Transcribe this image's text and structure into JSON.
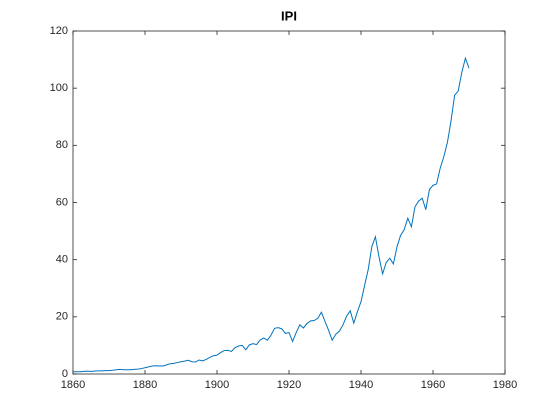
{
  "chart_data": {
    "type": "line",
    "title": "IPI",
    "x": [
      1860,
      1861,
      1862,
      1863,
      1864,
      1865,
      1866,
      1867,
      1868,
      1869,
      1870,
      1871,
      1872,
      1873,
      1874,
      1875,
      1876,
      1877,
      1878,
      1879,
      1880,
      1881,
      1882,
      1883,
      1884,
      1885,
      1886,
      1887,
      1888,
      1889,
      1890,
      1891,
      1892,
      1893,
      1894,
      1895,
      1896,
      1897,
      1898,
      1899,
      1900,
      1901,
      1902,
      1903,
      1904,
      1905,
      1906,
      1907,
      1908,
      1909,
      1910,
      1911,
      1912,
      1913,
      1914,
      1915,
      1916,
      1917,
      1918,
      1919,
      1920,
      1921,
      1922,
      1923,
      1924,
      1925,
      1926,
      1927,
      1928,
      1929,
      1930,
      1931,
      1932,
      1933,
      1934,
      1935,
      1936,
      1937,
      1938,
      1939,
      1940,
      1941,
      1942,
      1943,
      1944,
      1945,
      1946,
      1947,
      1948,
      1949,
      1950,
      1951,
      1952,
      1953,
      1954,
      1955,
      1956,
      1957,
      1958,
      1959,
      1960,
      1961,
      1962,
      1963,
      1964,
      1965,
      1966,
      1967,
      1968,
      1969,
      1970
    ],
    "series": [
      {
        "color": "#0072bd",
        "values": [
          0.8,
          0.8,
          0.8,
          0.9,
          1.0,
          0.9,
          1.0,
          1.1,
          1.1,
          1.2,
          1.2,
          1.3,
          1.5,
          1.6,
          1.5,
          1.5,
          1.5,
          1.6,
          1.7,
          1.9,
          2.2,
          2.5,
          2.8,
          2.9,
          2.8,
          2.8,
          3.2,
          3.6,
          3.7,
          4.0,
          4.3,
          4.5,
          4.8,
          4.3,
          4.2,
          4.9,
          4.6,
          5.1,
          5.8,
          6.4,
          6.6,
          7.5,
          8.2,
          8.3,
          7.9,
          9.2,
          9.8,
          10.0,
          8.5,
          10.2,
          10.6,
          10.3,
          11.9,
          12.6,
          11.8,
          13.6,
          16.0,
          16.2,
          15.8,
          14.2,
          14.5,
          11.4,
          14.5,
          17.2,
          16.1,
          17.7,
          18.6,
          18.7,
          19.5,
          21.6,
          18.4,
          15.3,
          11.8,
          13.9,
          15.0,
          17.2,
          20.2,
          22.1,
          17.8,
          21.8,
          25.3,
          31.0,
          36.5,
          44.5,
          48.0,
          41.0,
          35.0,
          39.0,
          40.5,
          38.5,
          44.5,
          48.5,
          50.5,
          54.5,
          51.5,
          58.5,
          60.5,
          61.5,
          57.5,
          64.5,
          66.0,
          66.5,
          72.0,
          76.0,
          81.0,
          88.5,
          97.5,
          99.0,
          105.5,
          110.5,
          107.0
        ]
      }
    ],
    "xlim": [
      1860,
      1980
    ],
    "xticks": [
      1860,
      1880,
      1900,
      1920,
      1940,
      1960,
      1980
    ],
    "ylim": [
      0,
      120
    ],
    "yticks": [
      0,
      20,
      40,
      60,
      80,
      100,
      120
    ]
  }
}
